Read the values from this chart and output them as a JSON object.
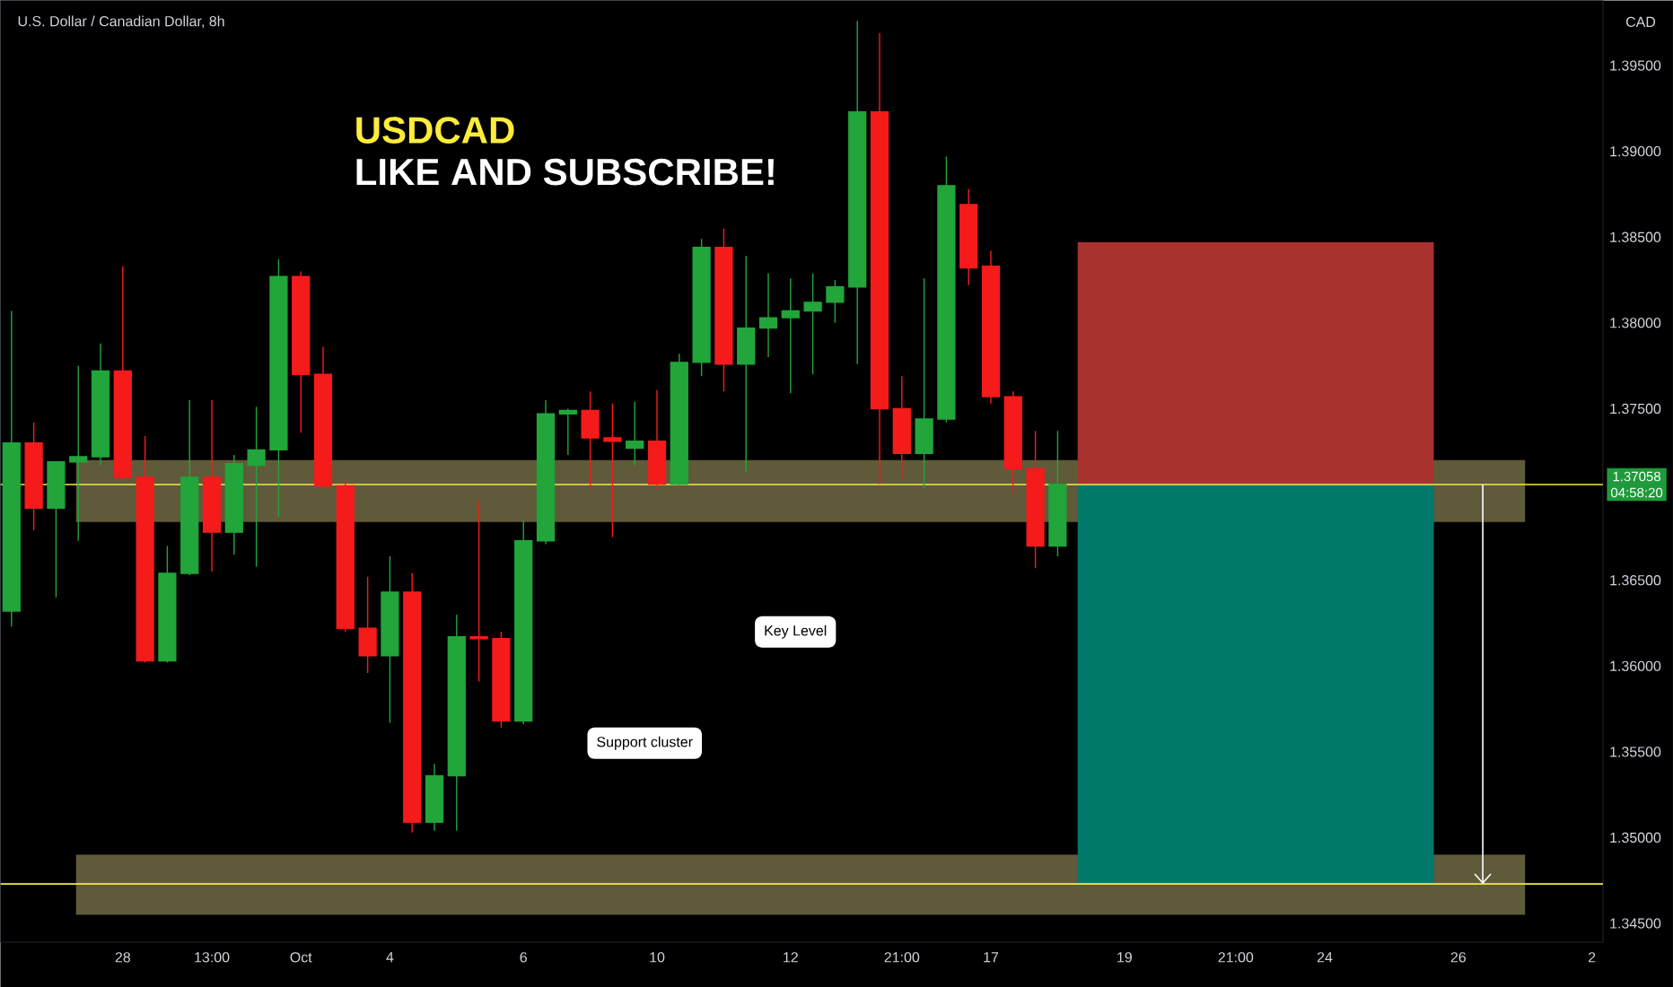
{
  "chart_data": {
    "type": "candlestick",
    "title": "U.S. Dollar / Canadian Dollar, 8h",
    "subtitle": "USDCAD",
    "ylabel": "CAD",
    "categories": [
      null,
      null,
      null,
      null,
      null,
      "28",
      null,
      null,
      null,
      "13:00",
      null,
      null,
      null,
      "Oct",
      null,
      null,
      null,
      "4",
      null,
      null,
      null,
      null,
      null,
      "6",
      null,
      null,
      null,
      null,
      null,
      "10",
      null,
      null,
      null,
      null,
      null,
      "12",
      null,
      null,
      null,
      null,
      "21:00",
      null,
      null,
      null,
      "17",
      null,
      null,
      null,
      null,
      null,
      "19",
      null,
      null,
      null,
      null,
      "21:00",
      null,
      null,
      null,
      "24",
      null,
      null,
      null,
      null,
      null,
      "26",
      null,
      null,
      null,
      null,
      null,
      "2"
    ],
    "ohlc": [
      [
        1.3632,
        1.3807,
        1.3623,
        1.373
      ],
      [
        1.373,
        1.3742,
        1.3679,
        1.3692
      ],
      [
        1.3692,
        1.3719,
        1.364,
        1.3719
      ],
      [
        1.3719,
        1.3775,
        1.3673,
        1.3722
      ],
      [
        1.3722,
        1.3788,
        1.3717,
        1.3772
      ],
      [
        1.3772,
        1.3833,
        1.3709,
        1.371
      ],
      [
        1.371,
        1.3734,
        1.3602,
        1.3603
      ],
      [
        1.3603,
        1.367,
        1.3602,
        1.3654
      ],
      [
        1.3654,
        1.3755,
        1.3653,
        1.371
      ],
      [
        1.371,
        1.3755,
        1.3655,
        1.3678
      ],
      [
        1.3678,
        1.3723,
        1.3665,
        1.3718
      ],
      [
        1.3717,
        1.3751,
        1.3658,
        1.3726
      ],
      [
        1.3726,
        1.3837,
        1.3687,
        1.3827
      ],
      [
        1.3827,
        1.383,
        1.3736,
        1.377
      ],
      [
        1.377,
        1.3786,
        1.3703,
        1.3705
      ],
      [
        1.3705,
        1.3708,
        1.362,
        1.3622
      ],
      [
        1.3622,
        1.3652,
        1.3596,
        1.3606
      ],
      [
        1.3606,
        1.3664,
        1.3567,
        1.3643
      ],
      [
        1.3643,
        1.3654,
        1.3503,
        1.3509
      ],
      [
        1.3509,
        1.3543,
        1.3504,
        1.3536
      ],
      [
        1.3536,
        1.363,
        1.3504,
        1.3617
      ],
      [
        1.3617,
        1.3696,
        1.3591,
        1.3616
      ],
      [
        1.3616,
        1.362,
        1.3564,
        1.3568
      ],
      [
        1.3568,
        1.3685,
        1.3566,
        1.3673
      ],
      [
        1.3673,
        1.3755,
        1.3671,
        1.3747
      ],
      [
        1.3747,
        1.375,
        1.3723,
        1.3749
      ],
      [
        1.3749,
        1.376,
        1.3704,
        1.3733
      ],
      [
        1.3733,
        1.3753,
        1.3675,
        1.3731
      ],
      [
        1.3727,
        1.3754,
        1.3717,
        1.3731
      ],
      [
        1.3731,
        1.3761,
        1.3703,
        1.3706
      ],
      [
        1.3706,
        1.3782,
        1.3705,
        1.3777
      ],
      [
        1.3777,
        1.3849,
        1.3769,
        1.3844
      ],
      [
        1.3844,
        1.3855,
        1.376,
        1.3776
      ],
      [
        1.3776,
        1.3839,
        1.3713,
        1.3797
      ],
      [
        1.3797,
        1.3829,
        1.378,
        1.3803
      ],
      [
        1.3803,
        1.3826,
        1.3759,
        1.3807
      ],
      [
        1.3807,
        1.3829,
        1.377,
        1.3812
      ],
      [
        1.3812,
        1.3825,
        1.38,
        1.3821
      ],
      [
        1.3821,
        1.3976,
        1.3776,
        1.3923
      ],
      [
        1.3923,
        1.3969,
        1.3706,
        1.375
      ],
      [
        1.375,
        1.3769,
        1.3709,
        1.3724
      ],
      [
        1.3724,
        1.3826,
        1.3704,
        1.3744
      ],
      [
        1.3744,
        1.3897,
        1.3742,
        1.388
      ],
      [
        1.3869,
        1.3878,
        1.3822,
        1.3832
      ],
      [
        1.3833,
        1.3842,
        1.3753,
        1.3757
      ],
      [
        1.3757,
        1.376,
        1.3701,
        1.3715
      ],
      [
        1.3715,
        1.3737,
        1.3657,
        1.367
      ],
      [
        1.367,
        1.3737,
        1.3664,
        1.3706
      ],
      null,
      null,
      null,
      null,
      null,
      null,
      null,
      null,
      null,
      null,
      null,
      null,
      null,
      null,
      null,
      null,
      null,
      null,
      null,
      null,
      null,
      null,
      null,
      null
    ],
    "colors": [
      "#22a53a",
      "#f51b1b",
      "#22a53a",
      "#22a53a",
      "#22a53a",
      "#f51b1b",
      "#f51b1b",
      "#22a53a",
      "#22a53a",
      "#f51b1b",
      "#22a53a",
      "#22a53a",
      "#22a53a",
      "#f51b1b",
      "#f51b1b",
      "#f51b1b",
      "#f51b1b",
      "#22a53a",
      "#f51b1b",
      "#22a53a",
      "#22a53a",
      "#f51b1b",
      "#f51b1b",
      "#22a53a",
      "#22a53a",
      "#22a53a",
      "#f51b1b",
      "#f51b1b",
      "#22a53a",
      "#f51b1b",
      "#22a53a",
      "#22a53a",
      "#f51b1b",
      "#22a53a",
      "#22a53a",
      "#22a53a",
      "#22a53a",
      "#22a53a",
      "#22a53a",
      "#f51b1b",
      "#f51b1b",
      "#22a53a",
      "#22a53a",
      "#f51b1b",
      "#f51b1b",
      "#f51b1b",
      "#f51b1b",
      "#22a53a",
      null,
      null,
      null,
      null,
      null,
      null,
      null,
      null,
      null,
      null,
      null,
      null,
      null,
      null,
      null,
      null,
      null,
      null,
      null,
      null,
      null,
      null,
      null,
      null
    ],
    "bands": [
      {
        "axis": "y",
        "from": 1.3684,
        "to": 1.372,
        "color": "#5f5a3a"
      },
      {
        "axis": "y",
        "from": 1.3455,
        "to": 1.349,
        "color": "#5f5a3a"
      },
      {
        "axis": "y",
        "from": 1.37058,
        "to": 1.3847,
        "color": "#a8322d"
      },
      {
        "axis": "y",
        "from": 1.3473,
        "to": 1.37058,
        "color": "#00796b"
      }
    ],
    "ref_lines": [
      {
        "axis": "y",
        "value": 1.37058,
        "label": "1.37058",
        "color": "#f5e94a"
      },
      {
        "axis": "y",
        "value": 1.3473,
        "color": "#f5e94a"
      }
    ],
    "ylim": [
      1.3439,
      1.3988
    ],
    "yticks": [
      {
        "value": 1.345,
        "label": "1.34500"
      },
      {
        "value": 1.35,
        "label": "1.35000"
      },
      {
        "value": 1.355,
        "label": "1.35500"
      },
      {
        "value": 1.36,
        "label": "1.36000"
      },
      {
        "value": 1.365,
        "label": "1.36500"
      },
      {
        "value": 1.375,
        "label": "1.37500"
      },
      {
        "value": 1.38,
        "label": "1.38000"
      },
      {
        "value": 1.385,
        "label": "1.38500"
      },
      {
        "value": 1.39,
        "label": "1.39000"
      },
      {
        "value": 1.395,
        "label": "1.39500"
      }
    ],
    "annotations": [
      "LIKE AND SUBSCRIBE!",
      "04:58:20",
      "Key Level",
      "Support cluster"
    ]
  }
}
